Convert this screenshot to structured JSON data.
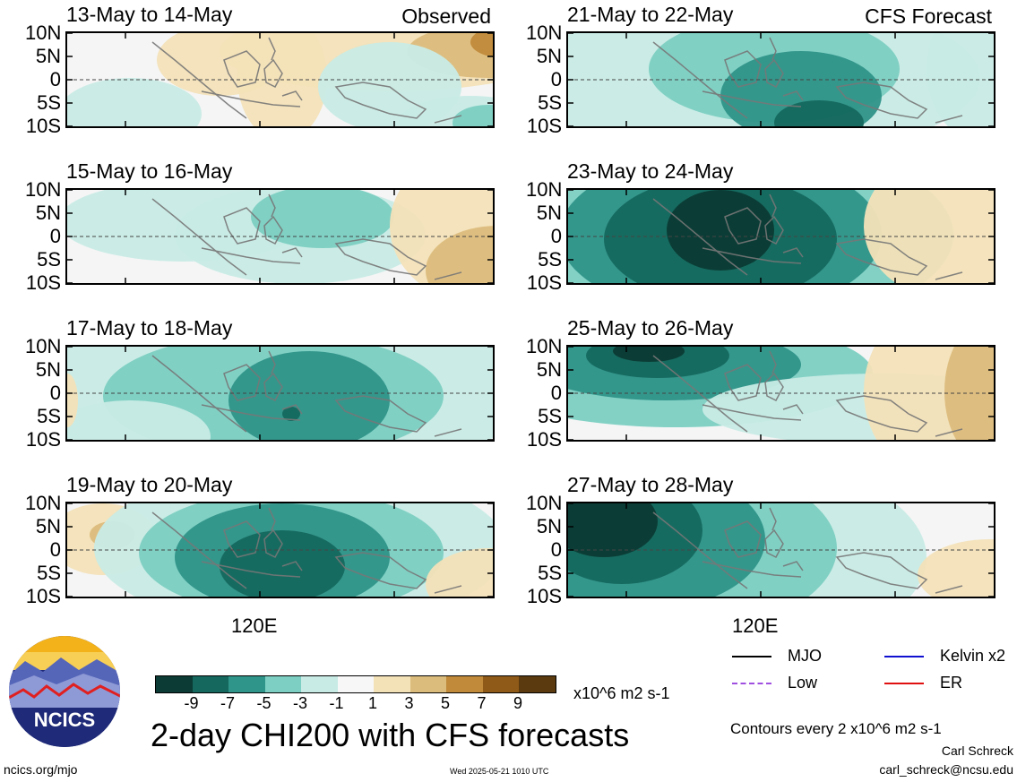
{
  "latitude_labels": [
    "10N",
    "5N",
    "0",
    "5S",
    "10S"
  ],
  "longitude_label": "120E",
  "panels_left": [
    {
      "date": "13-May to 14-May",
      "tag": "Observed"
    },
    {
      "date": "15-May to 16-May",
      "tag": ""
    },
    {
      "date": "17-May to 18-May",
      "tag": ""
    },
    {
      "date": "19-May to 20-May",
      "tag": ""
    }
  ],
  "panels_right": [
    {
      "date": "21-May to 22-May",
      "tag": "CFS Forecast"
    },
    {
      "date": "23-May to 24-May",
      "tag": ""
    },
    {
      "date": "25-May to 26-May",
      "tag": ""
    },
    {
      "date": "27-May to 28-May",
      "tag": ""
    }
  ],
  "colorbar": {
    "ticks": [
      "-9",
      "-7",
      "-5",
      "-3",
      "-1",
      "1",
      "3",
      "5",
      "7",
      "9"
    ],
    "colors": [
      "#0b3b34",
      "#15685e",
      "#2f9489",
      "#7ccfc2",
      "#c8ebe5",
      "#f7f7f7",
      "#f3e2b8",
      "#dcbc7c",
      "#c08a3a",
      "#8f5a18",
      "#5a3a0e"
    ],
    "units": "x10^6 m2 s-1"
  },
  "legend": {
    "items": [
      {
        "label": "MJO",
        "color": "#000000",
        "style": "solid"
      },
      {
        "label": "Kelvin x2",
        "color": "#1010d0",
        "style": "solid"
      },
      {
        "label": "Low",
        "color": "#a050e0",
        "style": "dashed"
      },
      {
        "label": "ER",
        "color": "#e01010",
        "style": "solid"
      }
    ],
    "contour_note": "Contours every 2 x10^6 m2 s-1"
  },
  "title": "2-day CHI200 with CFS forecasts",
  "logo_text": "NCICS",
  "footer": {
    "url": "ncics.org/mjo",
    "timestamp": "Wed 2025-05-21 1010 UTC",
    "author": "Carl Schreck",
    "email": "carl_schreck@ncsu.edu"
  }
}
